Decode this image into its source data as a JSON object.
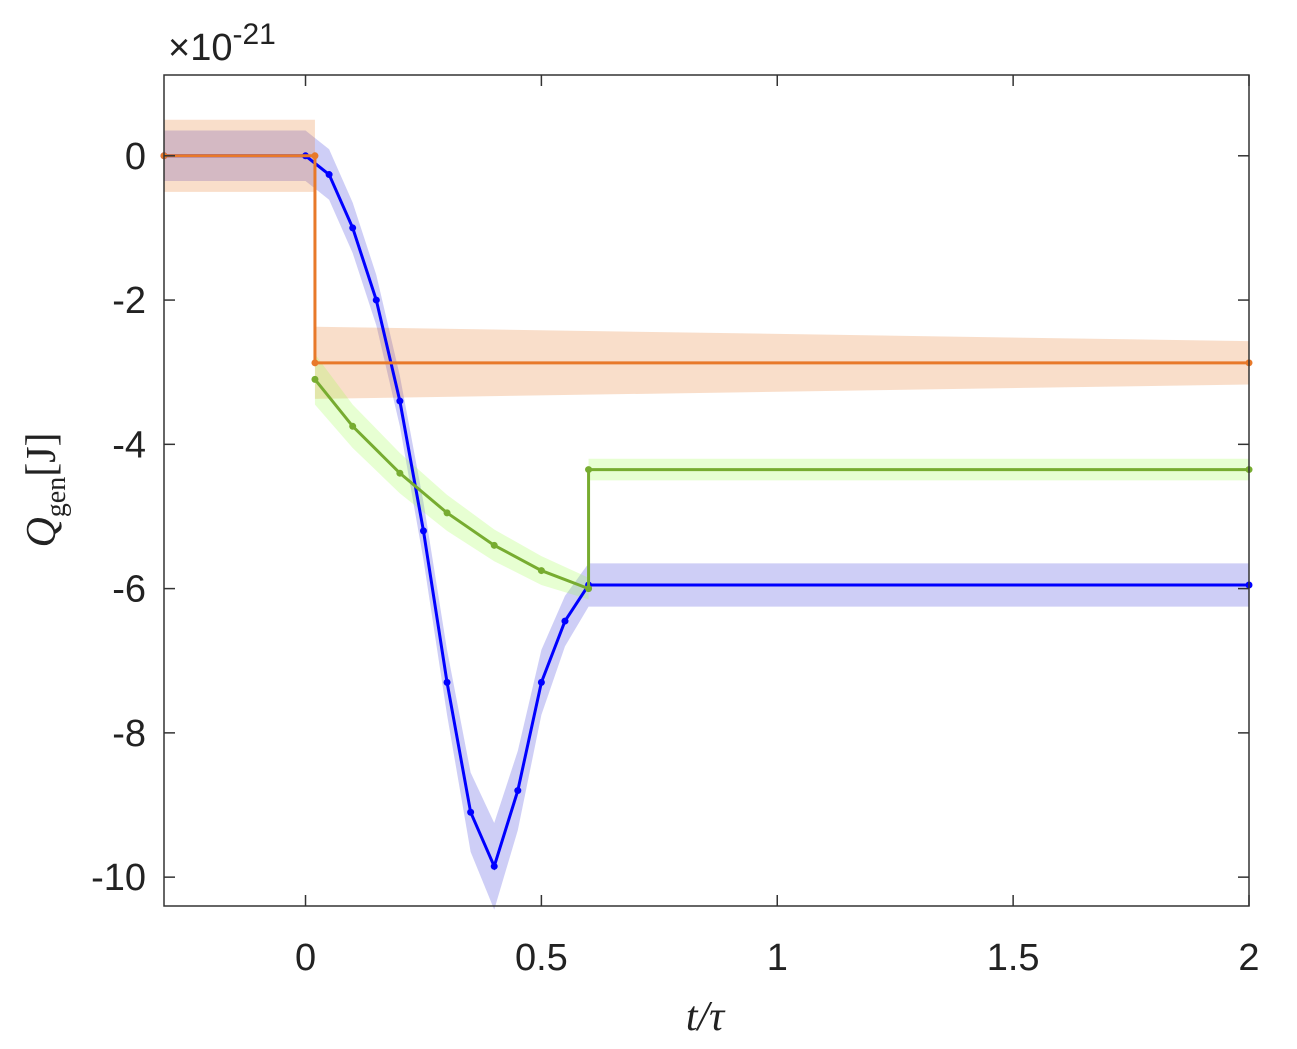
{
  "chart_data": {
    "type": "line",
    "ylabel": "Q",
    "ylabel_sub": "gen",
    "ylabel_unit": "[J]",
    "xlabel": "t/τ",
    "y_multiplier": {
      "base": "×10",
      "exponent": "-21"
    },
    "xlim": [
      -0.3,
      2
    ],
    "xticks": [
      0,
      0.5,
      1,
      1.5,
      2
    ],
    "ylim": [
      -10.4,
      1.12
    ],
    "yticks": [
      0,
      -2,
      -4,
      -6,
      -8,
      -10
    ],
    "series": [
      {
        "color": "#0000ff",
        "band_color": "#3c3cdc",
        "x": [
          -0.3,
          0,
          0.05,
          0.1,
          0.15,
          0.2,
          0.25,
          0.3,
          0.35,
          0.4,
          0.45,
          0.5,
          0.55,
          0.6,
          2
        ],
        "values": [
          0,
          0,
          -0.26,
          -1.0,
          -2.0,
          -3.4,
          -5.2,
          -7.3,
          -9.1,
          -9.85,
          -8.8,
          -7.3,
          -6.45,
          -5.95,
          -5.95
        ],
        "band": [
          0.35,
          0.35,
          0.35,
          0.35,
          0.35,
          0.35,
          0.4,
          0.45,
          0.55,
          0.6,
          0.55,
          0.45,
          0.35,
          0.3,
          0.3
        ]
      },
      {
        "color": "#e8792a",
        "band_color": "#e87a2a",
        "x": [
          -0.3,
          0.02,
          0.02,
          2
        ],
        "values": [
          0,
          0,
          -2.87,
          -2.87
        ],
        "band": [
          0.5,
          0.5,
          0.5,
          0.3
        ]
      },
      {
        "color": "#77ac30",
        "band_color": "#9eff4a",
        "x": [
          0.02,
          0.1,
          0.2,
          0.3,
          0.4,
          0.5,
          0.6,
          0.6,
          2
        ],
        "values": [
          -3.1,
          -3.75,
          -4.4,
          -4.95,
          -5.4,
          -5.75,
          -6.0,
          -4.35,
          -4.35
        ],
        "band": [
          0.35,
          0.3,
          0.28,
          0.25,
          0.22,
          0.2,
          0.15,
          0.15,
          0.15
        ]
      }
    ]
  }
}
